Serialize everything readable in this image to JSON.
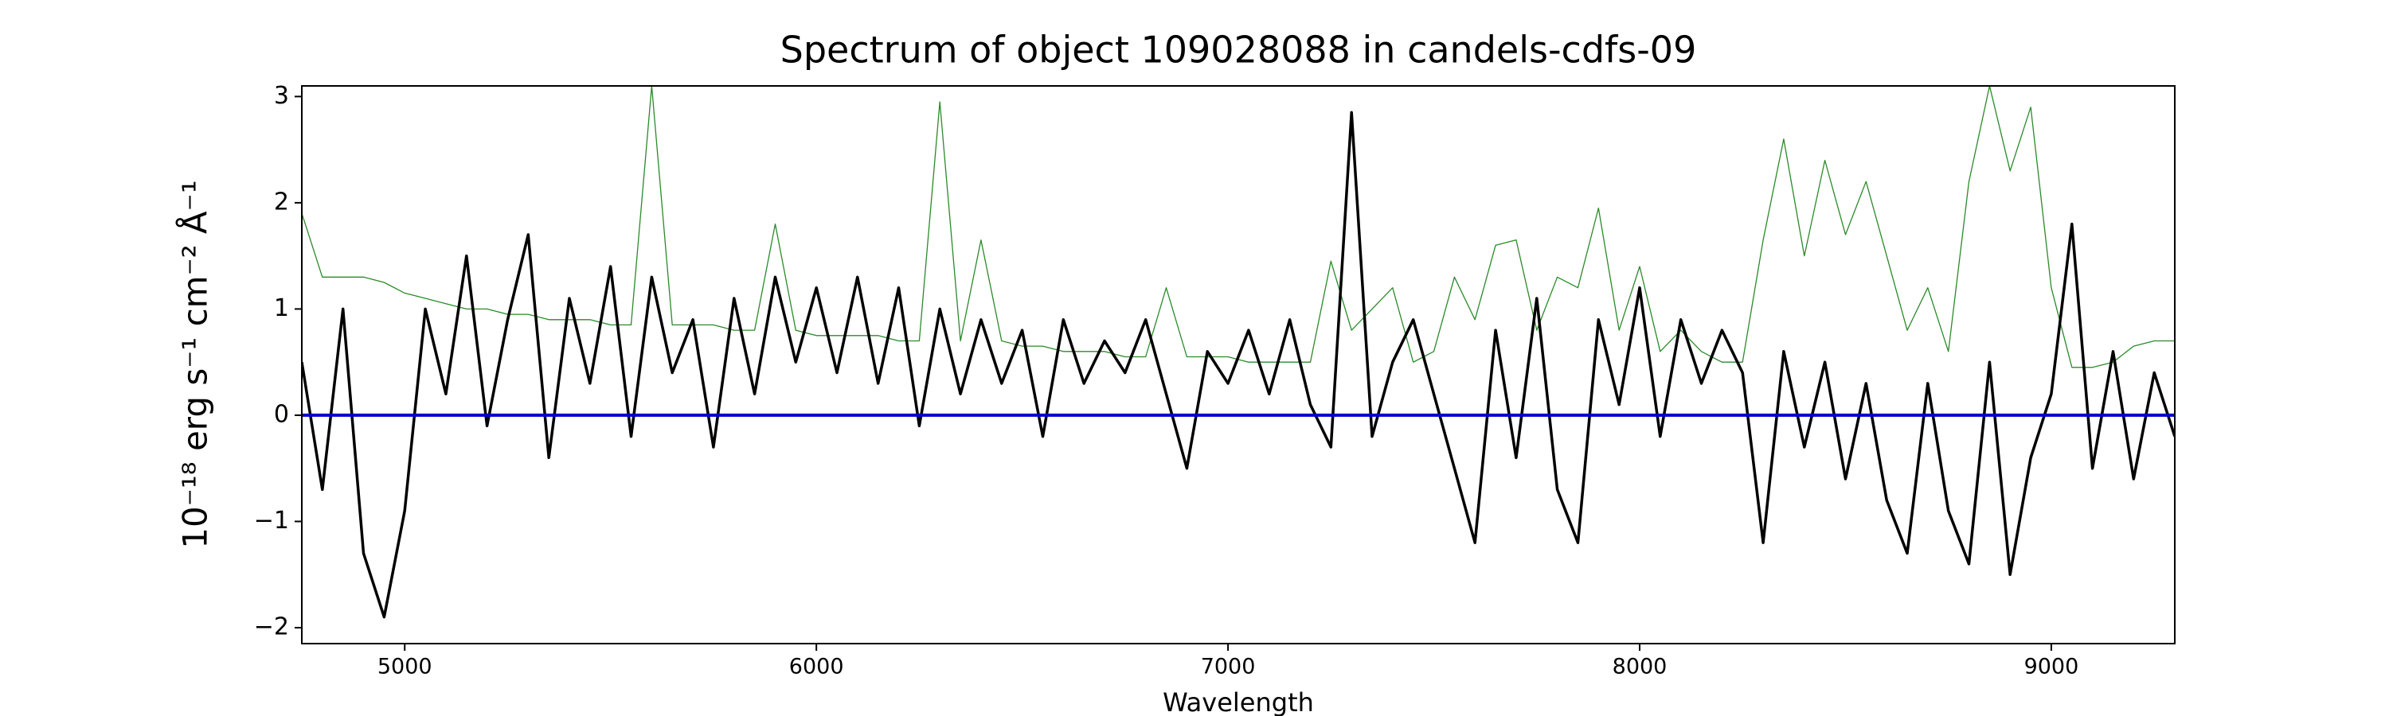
{
  "chart_data": {
    "type": "line",
    "title": "Spectrum of object 109028088 in candels-cdfs-09",
    "x_label": "Wavelength",
    "y_label": "10⁻¹⁸ erg s⁻¹ cm⁻² Å⁻¹",
    "x": [
      4750,
      4800,
      4850,
      4900,
      4950,
      5000,
      5050,
      5100,
      5150,
      5200,
      5250,
      5300,
      5350,
      5400,
      5450,
      5500,
      5550,
      5600,
      5650,
      5700,
      5750,
      5800,
      5850,
      5900,
      5950,
      6000,
      6050,
      6100,
      6150,
      6200,
      6250,
      6300,
      6350,
      6400,
      6450,
      6500,
      6550,
      6600,
      6650,
      6700,
      6750,
      6800,
      6850,
      6900,
      6950,
      7000,
      7050,
      7100,
      7150,
      7200,
      7250,
      7300,
      7350,
      7400,
      7450,
      7500,
      7550,
      7600,
      7650,
      7700,
      7750,
      7800,
      7850,
      7900,
      7950,
      8000,
      8050,
      8100,
      8150,
      8200,
      8250,
      8300,
      8350,
      8400,
      8450,
      8500,
      8550,
      8600,
      8650,
      8700,
      8750,
      8800,
      8850,
      8900,
      8950,
      9000,
      9050,
      9100,
      9150,
      9200,
      9250,
      9300
    ],
    "series": [
      {
        "color": "#2a8a2a",
        "width": 1.3,
        "values": [
          1.9,
          1.3,
          1.3,
          1.3,
          1.25,
          1.15,
          1.1,
          1.05,
          1.0,
          1.0,
          0.95,
          0.95,
          0.9,
          0.9,
          0.9,
          0.85,
          0.85,
          3.1,
          0.85,
          0.85,
          0.85,
          0.8,
          0.8,
          1.8,
          0.8,
          0.75,
          0.75,
          0.75,
          0.75,
          0.7,
          0.7,
          2.95,
          0.7,
          1.65,
          0.7,
          0.65,
          0.65,
          0.6,
          0.6,
          0.6,
          0.55,
          0.55,
          1.2,
          0.55,
          0.55,
          0.55,
          0.5,
          0.5,
          0.5,
          0.5,
          1.45,
          0.8,
          1.0,
          1.2,
          0.5,
          0.6,
          1.3,
          0.9,
          1.6,
          1.65,
          0.8,
          1.3,
          1.2,
          1.95,
          0.8,
          1.4,
          0.6,
          0.8,
          0.6,
          0.5,
          0.5,
          1.65,
          2.6,
          1.5,
          2.4,
          1.7,
          2.2,
          1.5,
          0.8,
          1.2,
          0.6,
          2.2,
          3.1,
          2.3,
          2.9,
          1.2,
          0.45,
          0.45,
          0.5,
          0.65,
          0.7,
          0.7
        ]
      },
      {
        "color": "#000000",
        "width": 3.5,
        "values": [
          0.5,
          -0.7,
          1.0,
          -1.3,
          -1.9,
          -0.9,
          1.0,
          0.2,
          1.5,
          -0.1,
          0.9,
          1.7,
          -0.4,
          1.1,
          0.3,
          1.4,
          -0.2,
          1.3,
          0.4,
          0.9,
          -0.3,
          1.1,
          0.2,
          1.3,
          0.5,
          1.2,
          0.4,
          1.3,
          0.3,
          1.2,
          -0.1,
          1.0,
          0.2,
          0.9,
          0.3,
          0.8,
          -0.2,
          0.9,
          0.3,
          0.7,
          0.4,
          0.9,
          0.2,
          -0.5,
          0.6,
          0.3,
          0.8,
          0.2,
          0.9,
          0.1,
          -0.3,
          2.85,
          -0.2,
          0.5,
          0.9,
          0.2,
          -0.5,
          -1.2,
          0.8,
          -0.4,
          1.1,
          -0.7,
          -1.2,
          0.9,
          0.1,
          1.2,
          -0.2,
          0.9,
          0.3,
          0.8,
          0.4,
          -1.2,
          0.6,
          -0.3,
          0.5,
          -0.6,
          0.3,
          -0.8,
          -1.3,
          0.3,
          -0.9,
          -1.4,
          0.5,
          -1.5,
          -0.4,
          0.2,
          1.8,
          -0.5,
          0.6,
          -0.6,
          0.4,
          -0.2
        ]
      }
    ],
    "hlines": [
      {
        "value": 0,
        "color": "#0000cc"
      }
    ],
    "xlim": [
      4750,
      9300
    ],
    "ylim": [
      -2.15,
      3.1
    ],
    "xticks": [
      5000,
      6000,
      7000,
      8000,
      9000
    ],
    "yticks": [
      {
        "value": -2,
        "label": "−2"
      },
      {
        "value": -1,
        "label": "−1"
      },
      0,
      1,
      2,
      3
    ]
  }
}
